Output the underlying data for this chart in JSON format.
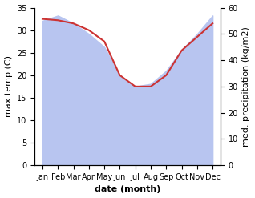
{
  "months": [
    "Jan",
    "Feb",
    "Mar",
    "Apr",
    "May",
    "Jun",
    "Jul",
    "Aug",
    "Sep",
    "Oct",
    "Nov",
    "Dec"
  ],
  "month_indices": [
    0,
    1,
    2,
    3,
    4,
    5,
    6,
    7,
    8,
    9,
    10,
    11
  ],
  "temp_max": [
    32.5,
    32.2,
    31.5,
    30.0,
    27.5,
    20.0,
    17.5,
    17.5,
    20.0,
    25.5,
    28.5,
    31.5
  ],
  "precipitation": [
    55,
    57,
    54,
    50,
    45,
    34,
    30,
    31,
    36,
    44,
    50,
    57
  ],
  "temp_ylim": [
    0,
    35
  ],
  "precip_ylim": [
    0,
    60
  ],
  "temp_color": "#cc3333",
  "precip_fill_color": "#b8c5f0",
  "precip_fill_alpha": 1.0,
  "xlabel": "date (month)",
  "ylabel_left": "max temp (C)",
  "ylabel_right": "med. precipitation (kg/m2)",
  "temp_yticks": [
    0,
    5,
    10,
    15,
    20,
    25,
    30,
    35
  ],
  "precip_yticks": [
    0,
    10,
    20,
    30,
    40,
    50,
    60
  ],
  "background_color": "#ffffff",
  "temp_linewidth": 1.5,
  "tick_fontsize": 7,
  "label_fontsize": 8
}
